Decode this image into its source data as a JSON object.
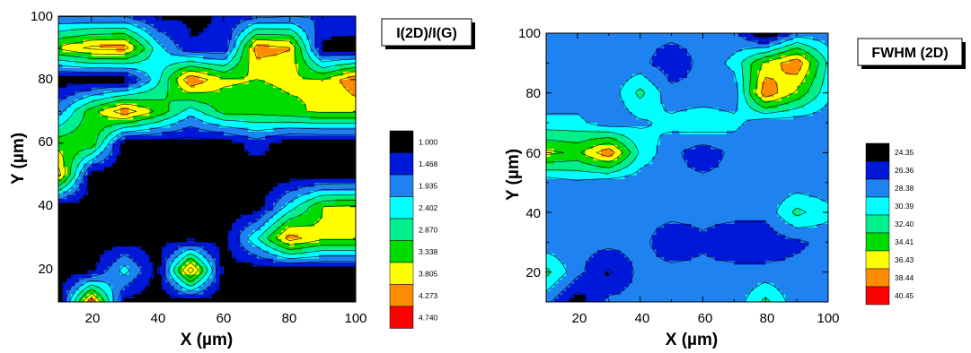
{
  "chart_data": [
    {
      "type": "heatmap",
      "title": "I(2D)/I(G)",
      "xlabel": "X (µm)",
      "ylabel": "Y (µm)",
      "xlim": [
        10,
        100
      ],
      "ylim": [
        10,
        100
      ],
      "xticks": [
        "20",
        "40",
        "60",
        "80",
        "100"
      ],
      "xtick_values": [
        20,
        40,
        60,
        80,
        100
      ],
      "yticks": [
        "20",
        "40",
        "60",
        "80",
        "100"
      ],
      "ytick_values": [
        20,
        40,
        60,
        80,
        100
      ],
      "x": [
        10,
        20,
        30,
        40,
        50,
        60,
        70,
        80,
        90,
        100
      ],
      "y": [
        10,
        20,
        30,
        40,
        50,
        60,
        70,
        80,
        90,
        100
      ],
      "z": [
        [
          1.2,
          4.7,
          1.3,
          1.2,
          1.2,
          1.2,
          1.2,
          1.2,
          1.2,
          1.2
        ],
        [
          1.2,
          1.3,
          2.6,
          1.3,
          4.6,
          1.3,
          1.2,
          1.2,
          1.2,
          1.2
        ],
        [
          1.2,
          1.2,
          1.2,
          1.3,
          1.3,
          1.3,
          2.8,
          4.5,
          3.9,
          3.9
        ],
        [
          1.2,
          1.2,
          1.2,
          1.2,
          1.2,
          1.2,
          1.2,
          2.6,
          3.8,
          3.9
        ],
        [
          4.5,
          1.2,
          1.2,
          1.2,
          1.2,
          1.2,
          1.2,
          1.2,
          1.2,
          1.2
        ],
        [
          3.6,
          3.7,
          1.2,
          1.2,
          1.2,
          1.2,
          1.7,
          1.2,
          1.2,
          1.2
        ],
        [
          2.2,
          3.6,
          4.6,
          3.7,
          2.6,
          3.5,
          3.5,
          3.7,
          3.9,
          3.9
        ],
        [
          1.2,
          1.2,
          1.2,
          2.7,
          4.7,
          3.9,
          3.8,
          3.9,
          3.8,
          4.7
        ],
        [
          3.9,
          4.4,
          4.5,
          2.6,
          1.5,
          1.5,
          4.5,
          4.3,
          1.3,
          1.2
        ],
        [
          1.9,
          1.9,
          1.9,
          1.4,
          1.4,
          1.5,
          1.8,
          1.9,
          1.9,
          1.9
        ]
      ],
      "levels": [
        1.0,
        1.468,
        1.935,
        2.402,
        2.87,
        3.338,
        3.805,
        4.273,
        4.74
      ],
      "legend_labels": [
        "1.000",
        "1.468",
        "1.935",
        "2.402",
        "2.870",
        "3.338",
        "3.805",
        "4.273",
        "4.740"
      ],
      "colors": [
        "#000000",
        "#0018d8",
        "#1e82f0",
        "#00ffff",
        "#00ee8c",
        "#00dc00",
        "#ffff00",
        "#ff8c00",
        "#ff0000"
      ],
      "legend_placement": "right",
      "grid": false
    },
    {
      "type": "heatmap",
      "title": "FWHM (2D)",
      "xlabel": "X (µm)",
      "ylabel": "Y (µm)",
      "xlim": [
        10,
        100
      ],
      "ylim": [
        10,
        100
      ],
      "xticks": [
        "20",
        "40",
        "60",
        "80",
        "100"
      ],
      "xtick_values": [
        20,
        40,
        60,
        80,
        100
      ],
      "yticks": [
        "20",
        "40",
        "60",
        "80",
        "100"
      ],
      "ytick_values": [
        20,
        40,
        60,
        80,
        100
      ],
      "x": [
        10,
        20,
        30,
        40,
        50,
        60,
        70,
        80,
        90,
        100
      ],
      "y": [
        10,
        20,
        30,
        40,
        50,
        60,
        70,
        80,
        90,
        100
      ],
      "z": [
        [
          29,
          25,
          29,
          29,
          29,
          29,
          29,
          33,
          29,
          29
        ],
        [
          33,
          29,
          26,
          29,
          29,
          29,
          29,
          29,
          29,
          29
        ],
        [
          29,
          29,
          29,
          29,
          27,
          28,
          27,
          27,
          28,
          29
        ],
        [
          29,
          29,
          29,
          29,
          29,
          29,
          29,
          29,
          33,
          31
        ],
        [
          29,
          30,
          29,
          29,
          29,
          29,
          29,
          29,
          29,
          29
        ],
        [
          37,
          36,
          40,
          32,
          29,
          27,
          29,
          29,
          29,
          29
        ],
        [
          31,
          31,
          29,
          30,
          31,
          32,
          31,
          29,
          29,
          29
        ],
        [
          29,
          29,
          29,
          33,
          29,
          29,
          29,
          40,
          36,
          31
        ],
        [
          29,
          29,
          29,
          29,
          27,
          29,
          31,
          37,
          40,
          32
        ],
        [
          29,
          29,
          29,
          29,
          29,
          29,
          29,
          24,
          29,
          29
        ]
      ],
      "levels": [
        24.35,
        26.36,
        28.38,
        30.39,
        32.4,
        34.41,
        36.43,
        38.44,
        40.45
      ],
      "legend_labels": [
        "24.35",
        "26.36",
        "28.38",
        "30.39",
        "32.40",
        "34.41",
        "36.43",
        "38.44",
        "40.45"
      ],
      "colors": [
        "#000000",
        "#0018d8",
        "#1e82f0",
        "#00ffff",
        "#00ee8c",
        "#00dc00",
        "#ffff00",
        "#ff8c00",
        "#ff0000"
      ],
      "legend_placement": "right",
      "grid": false
    }
  ]
}
